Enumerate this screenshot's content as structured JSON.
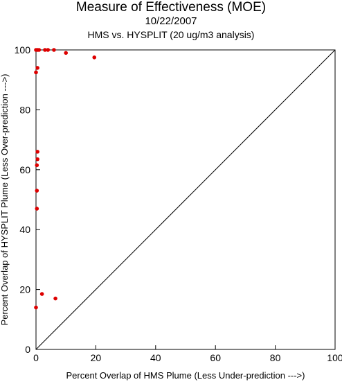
{
  "chart_data": {
    "type": "scatter",
    "title": "Measure of Effectiveness (MOE)",
    "date": "10/22/2007",
    "subtitle": "HMS vs. HYSPLIT  (20 ug/m3 analysis)",
    "xlabel": "Percent Overlap of HMS Plume (Less Under-prediction --->)",
    "ylabel": "Percent Overlap of HYSPLIT Plume (Less Over-prediction --->)",
    "xlim": [
      0,
      100
    ],
    "ylim": [
      0,
      100
    ],
    "xticks": [
      0,
      20,
      40,
      60,
      80,
      100
    ],
    "yticks": [
      0,
      20,
      40,
      60,
      80,
      100
    ],
    "reference_line": "y = x",
    "grid": false,
    "point_color": "#dd0000",
    "points": [
      {
        "x": 0.0,
        "y": 100.0
      },
      {
        "x": 0.5,
        "y": 100.0
      },
      {
        "x": 1.0,
        "y": 100.0
      },
      {
        "x": 3.0,
        "y": 100.0
      },
      {
        "x": 4.0,
        "y": 100.0
      },
      {
        "x": 6.0,
        "y": 100.0
      },
      {
        "x": 10.0,
        "y": 99.0
      },
      {
        "x": 19.5,
        "y": 97.5
      },
      {
        "x": 0.5,
        "y": 94.0
      },
      {
        "x": 0.0,
        "y": 92.5
      },
      {
        "x": 0.5,
        "y": 66.0
      },
      {
        "x": 0.5,
        "y": 63.5
      },
      {
        "x": 0.3,
        "y": 61.5
      },
      {
        "x": 0.3,
        "y": 53.0
      },
      {
        "x": 0.3,
        "y": 47.0
      },
      {
        "x": 2.0,
        "y": 18.5
      },
      {
        "x": 6.5,
        "y": 17.0
      },
      {
        "x": 0.0,
        "y": 14.0
      }
    ]
  }
}
